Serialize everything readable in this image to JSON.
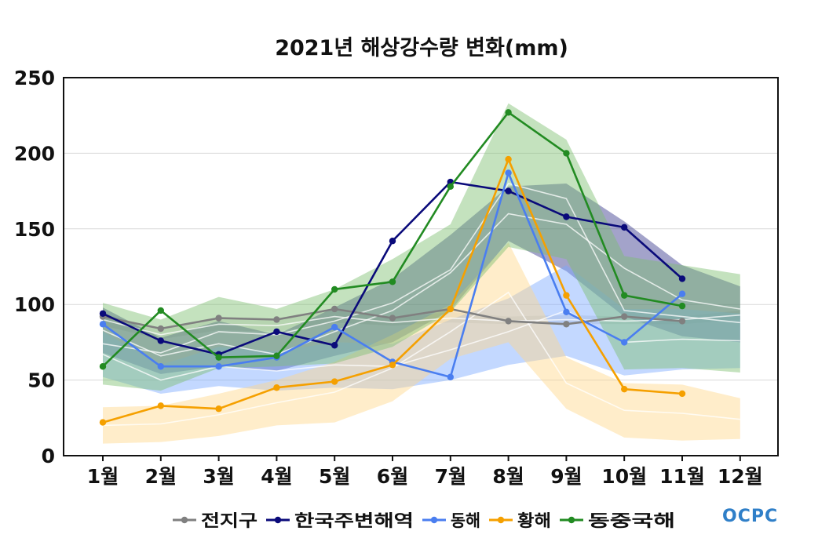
{
  "chart_data": {
    "type": "line",
    "title": "2021년 해상강수량 변화(mm)",
    "xlabel": "",
    "ylabel": "",
    "ylim": [
      0,
      250
    ],
    "yticks": [
      0,
      50,
      100,
      150,
      200,
      250
    ],
    "categories": [
      "1월",
      "2월",
      "3월",
      "4월",
      "5월",
      "6월",
      "7월",
      "8월",
      "9월",
      "10월",
      "11월",
      "12월"
    ],
    "grid": true,
    "legend_position": "bottom",
    "series": [
      {
        "name": "전지구",
        "color": "#808080",
        "values": [
          92,
          84,
          91,
          90,
          97,
          91,
          97,
          89,
          87,
          92,
          89,
          null
        ],
        "band": {
          "color": "#c8c8c8",
          "mean": [
            90,
            80,
            87,
            86,
            92,
            88,
            91,
            89,
            90,
            89,
            90,
            93
          ],
          "lower": [
            86,
            77,
            83,
            82,
            88,
            86,
            88,
            87,
            87,
            87,
            87,
            90
          ],
          "upper": [
            94,
            83,
            91,
            90,
            96,
            91,
            95,
            92,
            93,
            92,
            92,
            96
          ]
        }
      },
      {
        "name": "한국주변해역",
        "color": "#0a0a7a",
        "values": [
          94,
          76,
          67,
          82,
          73,
          142,
          181,
          175,
          158,
          151,
          117,
          null
        ],
        "band": {
          "color": "#34348a",
          "mean": [
            83,
            66,
            74,
            67,
            82,
            96,
            121,
            160,
            153,
            124,
            103,
            97
          ],
          "lower": [
            68,
            54,
            59,
            56,
            66,
            75,
            96,
            142,
            122,
            92,
            79,
            75
          ],
          "upper": [
            98,
            78,
            89,
            80,
            98,
            117,
            146,
            178,
            180,
            155,
            126,
            112
          ]
        }
      },
      {
        "name": "동해",
        "color": "#4a7ef0",
        "values": [
          87,
          59,
          59,
          65,
          85,
          62,
          52,
          187,
          95,
          75,
          107,
          null
        ],
        "band": {
          "color": "#7aa8ff",
          "mean": [
            67,
            50,
            59,
            56,
            60,
            59,
            70,
            82,
            96,
            75,
            77,
            76
          ],
          "lower": [
            52,
            41,
            46,
            43,
            45,
            44,
            50,
            60,
            66,
            53,
            57,
            58
          ],
          "upper": [
            82,
            60,
            72,
            69,
            75,
            74,
            90,
            104,
            126,
            97,
            97,
            94
          ]
        }
      },
      {
        "name": "황해",
        "color": "#f5a000",
        "values": [
          22,
          33,
          31,
          45,
          49,
          60,
          97,
          196,
          106,
          44,
          41,
          null
        ],
        "band": {
          "color": "#ffd68a",
          "mean": [
            20,
            21,
            27,
            35,
            42,
            58,
            82,
            108,
            48,
            30,
            28,
            24
          ],
          "lower": [
            8,
            9,
            13,
            20,
            22,
            36,
            64,
            75,
            31,
            12,
            10,
            11
          ],
          "upper": [
            32,
            33,
            41,
            50,
            62,
            80,
            100,
            141,
            65,
            48,
            47,
            38
          ]
        }
      },
      {
        "name": "동중국해",
        "color": "#228b22",
        "values": [
          59,
          96,
          65,
          66,
          110,
          115,
          178,
          227,
          200,
          106,
          99,
          null
        ],
        "band": {
          "color": "#7dbf6e",
          "mean": [
            74,
            68,
            82,
            80,
            89,
            101,
            123,
            180,
            170,
            96,
            92,
            88
          ],
          "lower": [
            47,
            43,
            58,
            59,
            61,
            72,
            95,
            138,
            130,
            57,
            58,
            55
          ],
          "upper": [
            101,
            90,
            105,
            97,
            110,
            130,
            153,
            233,
            209,
            132,
            126,
            120
          ]
        }
      }
    ]
  },
  "logo": {
    "text": "OCPC"
  }
}
